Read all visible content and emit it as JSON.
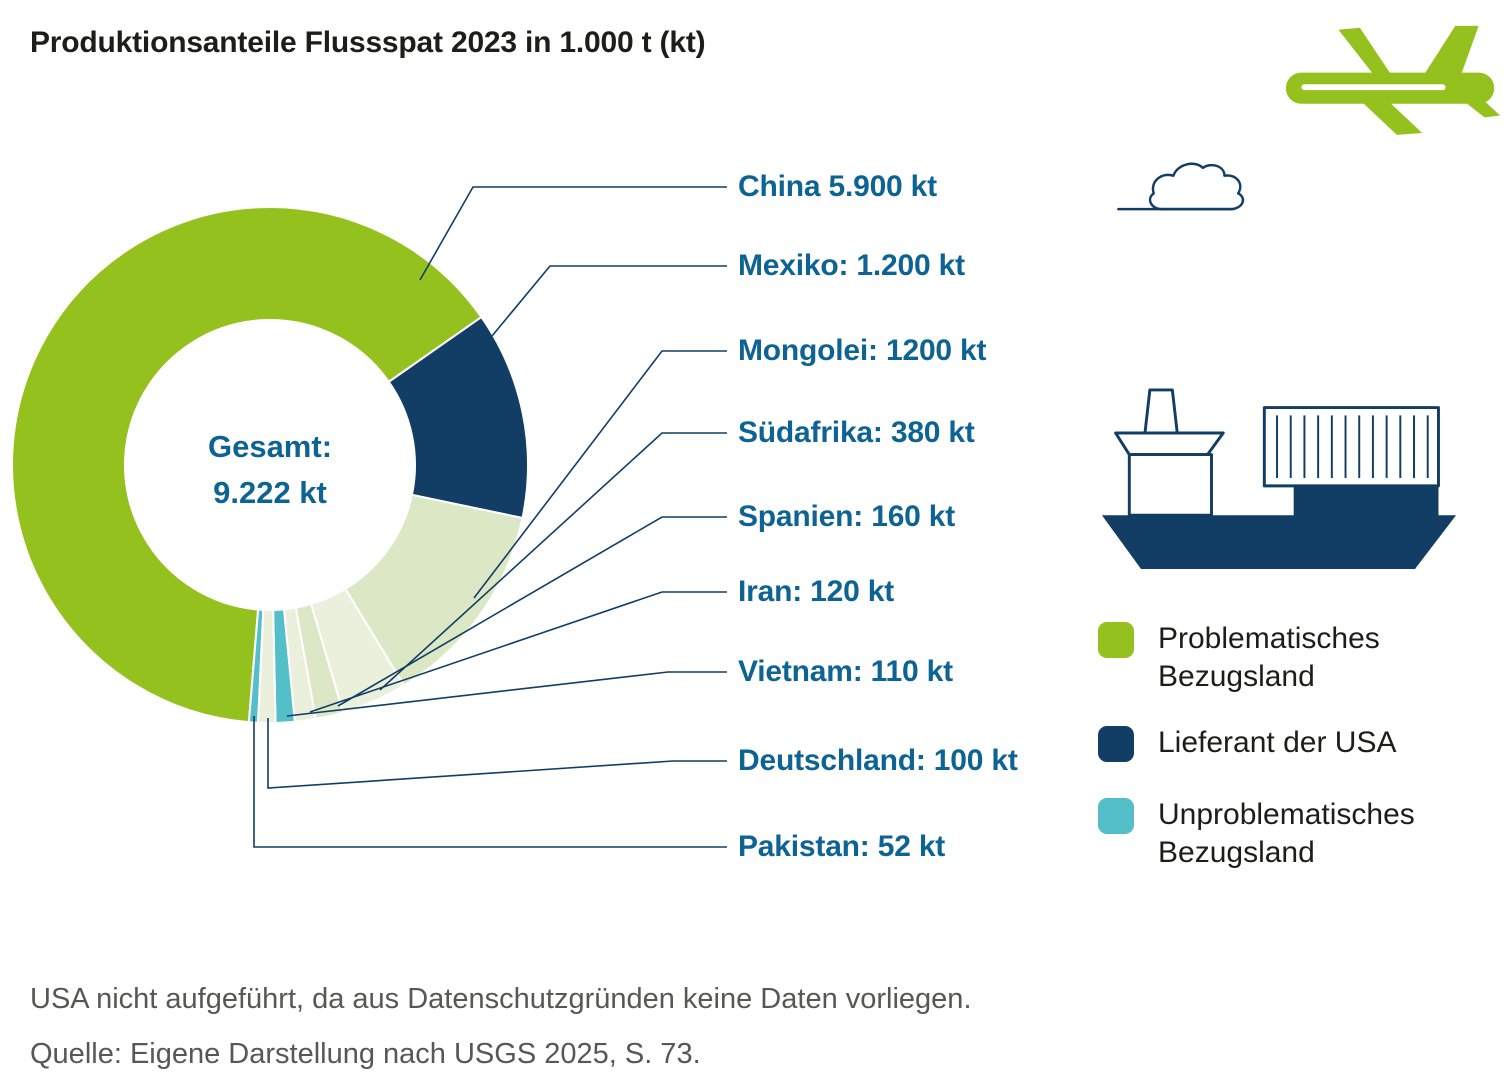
{
  "chart_data": {
    "type": "pie",
    "subtype": "donut",
    "title": "Produktionsanteile Flussspat 2023 in 1.000 t (kt)",
    "unit": "kt",
    "total_value": 9222,
    "center_label": [
      "Gesamt:",
      "9.222 kt"
    ],
    "start_angle_deg": 184.7,
    "legend_position": "right",
    "segments": [
      {
        "id": "china",
        "country": "China",
        "label": "China 5.900 kt",
        "value": 5900,
        "color": "#95c11f"
      },
      {
        "id": "mexiko",
        "country": "Mexiko",
        "label": "Mexiko: 1.200 kt",
        "value": 1200,
        "color": "#123d64"
      },
      {
        "id": "mongolei",
        "country": "Mongolei",
        "label": "Mongolei: 1200 kt",
        "value": 1200,
        "color": "#dce8c5"
      },
      {
        "id": "suedafrika",
        "country": "Südafrika",
        "label": "Südafrika: 380 kt",
        "value": 380,
        "color": "#eaf0dc"
      },
      {
        "id": "spanien",
        "country": "Spanien",
        "label": "Spanien: 160 kt",
        "value": 160,
        "color": "#dce8c5"
      },
      {
        "id": "iran",
        "country": "Iran",
        "label": "Iran: 120 kt",
        "value": 120,
        "color": "#eaf0dc"
      },
      {
        "id": "vietnam",
        "country": "Vietnam",
        "label": "Vietnam: 110 kt",
        "value": 110,
        "color": "#54bfc9"
      },
      {
        "id": "deutschland",
        "country": "Deutschland",
        "label": "Deutschland: 100 kt",
        "value": 100,
        "color": "#eaf0dc"
      },
      {
        "id": "pakistan",
        "country": "Pakistan",
        "label": "Pakistan: 52 kt",
        "value": 52,
        "color": "#54bfc9"
      }
    ]
  },
  "legend": [
    {
      "label": "Problematisches Bezugsland",
      "color": "#95c11f"
    },
    {
      "label": "Lieferant der USA",
      "color": "#123d64"
    },
    {
      "label": "Unproblematisches Bezugsland",
      "color": "#54bfc9"
    }
  ],
  "notes": [
    "USA nicht aufgeführt, da aus Datenschutzgründen keine Daten vorliegen.",
    "Quelle: Eigene Darstellung nach USGS 2025, S. 73."
  ],
  "colors": {
    "label_blue": "#0d6394",
    "line_navy": "#123d64",
    "title_black": "#1d1d1b",
    "note_gray": "#575756"
  },
  "icons": [
    "airplane-icon",
    "cloud-icon",
    "container-ship-icon"
  ]
}
